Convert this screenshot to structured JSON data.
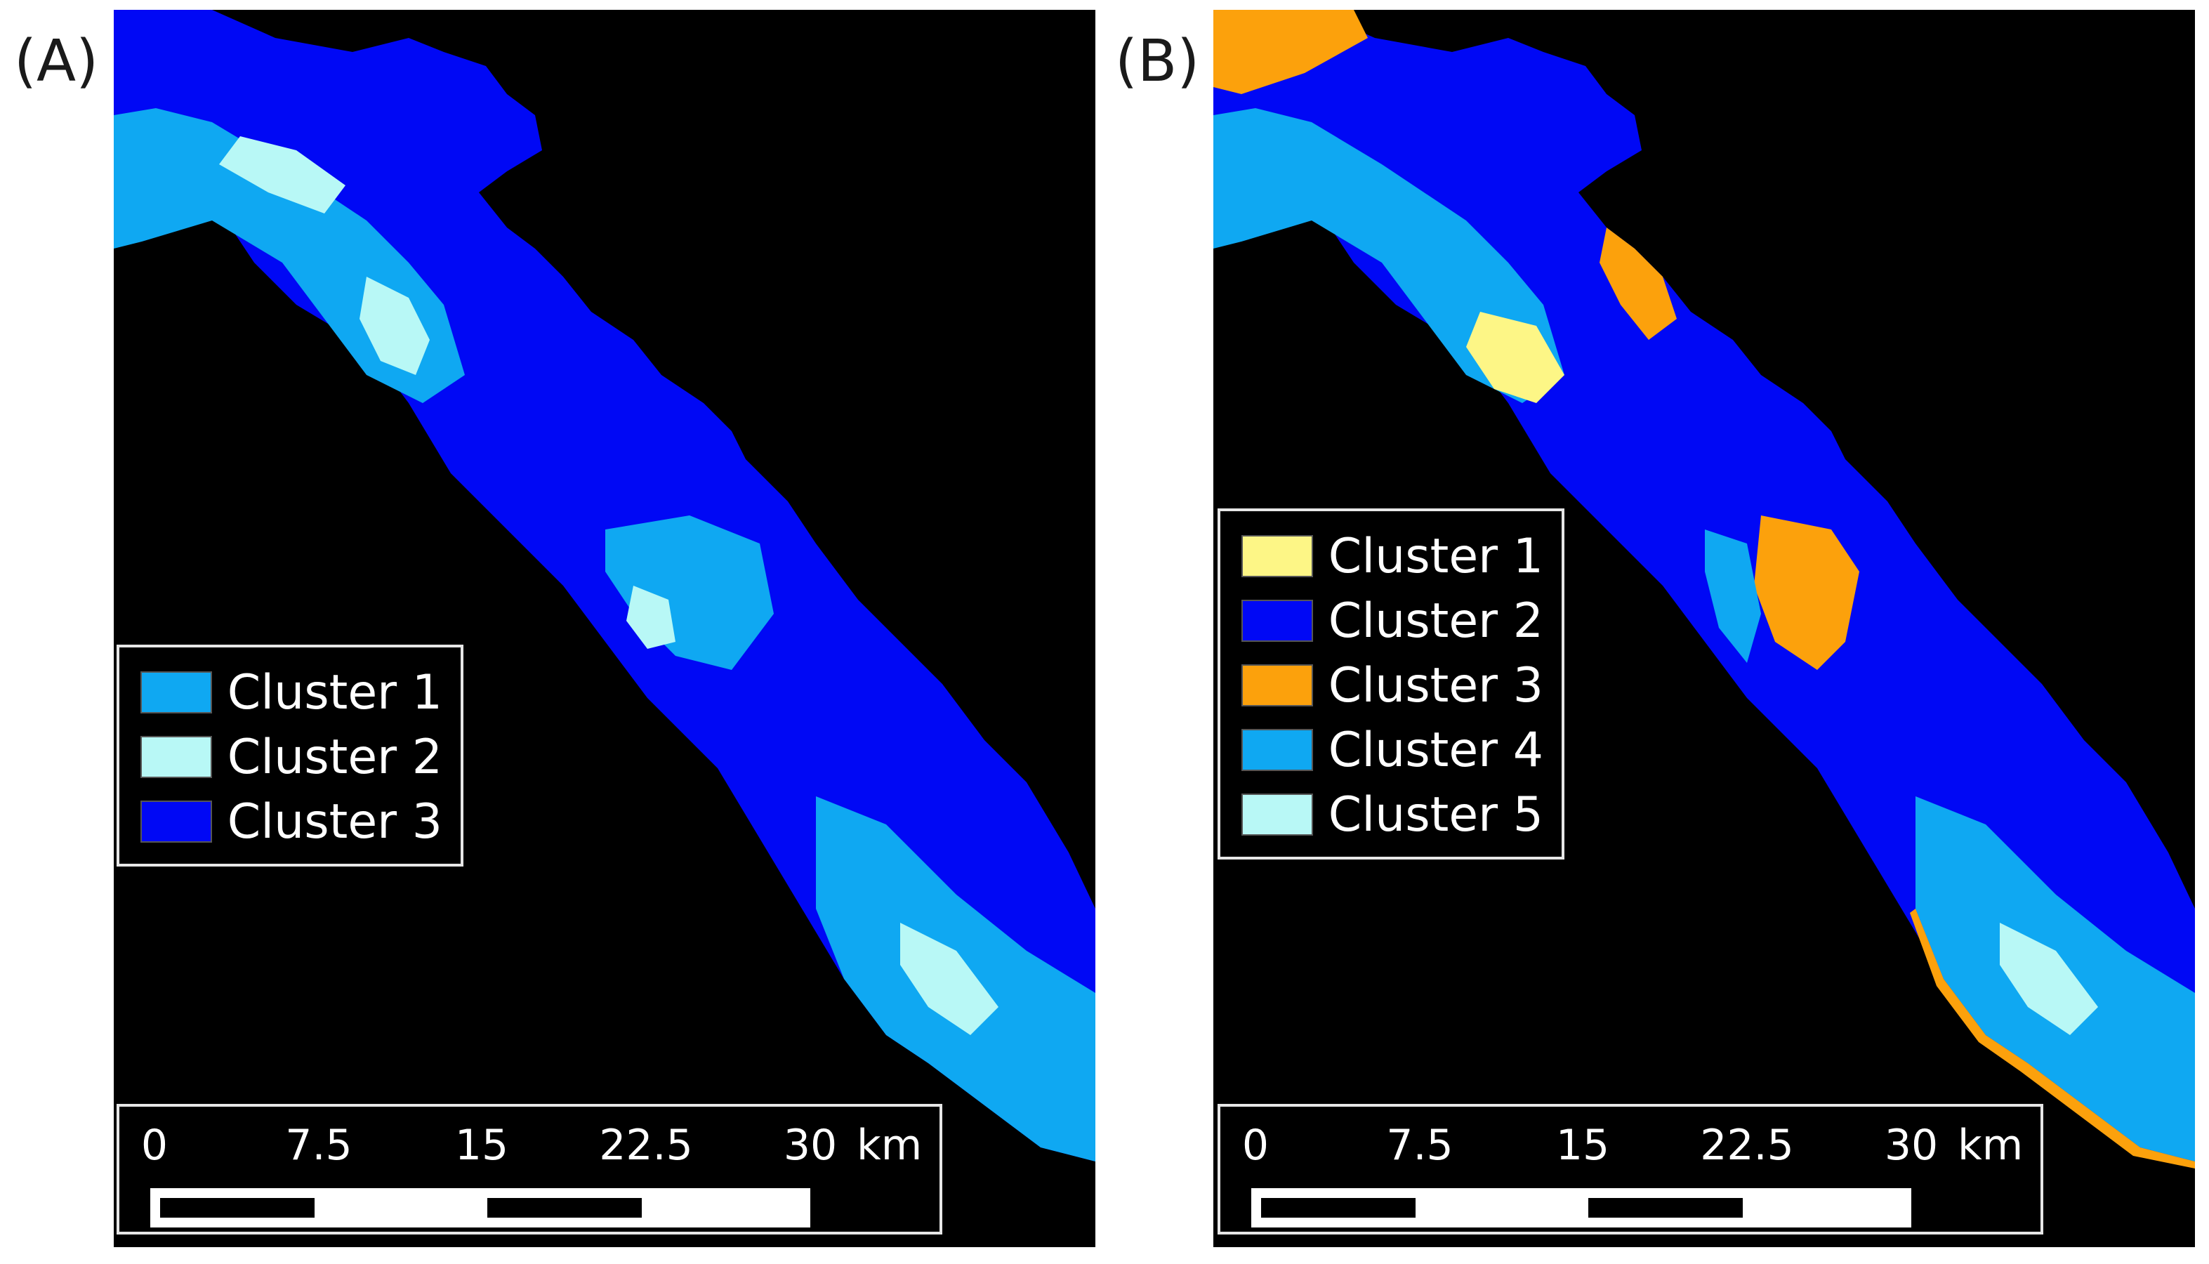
{
  "panels": [
    {
      "label": "(A)",
      "legend": [
        {
          "label": "Cluster 1",
          "color": "#0fa8f2"
        },
        {
          "label": "Cluster 2",
          "color": "#b8f8f6"
        },
        {
          "label": "Cluster 3",
          "color": "#0008f5"
        }
      ]
    },
    {
      "label": "(B)",
      "legend": [
        {
          "label": "Cluster 1",
          "color": "#fdf686"
        },
        {
          "label": "Cluster 2",
          "color": "#0008f5"
        },
        {
          "label": "Cluster 3",
          "color": "#fca10c"
        },
        {
          "label": "Cluster 4",
          "color": "#0fa8f2"
        },
        {
          "label": "Cluster 5",
          "color": "#b8f8f6"
        }
      ]
    }
  ],
  "scalebar": {
    "ticks": [
      "0",
      "7.5",
      "15",
      "22.5",
      "30"
    ],
    "unit": "km"
  },
  "background_color": "#000000"
}
